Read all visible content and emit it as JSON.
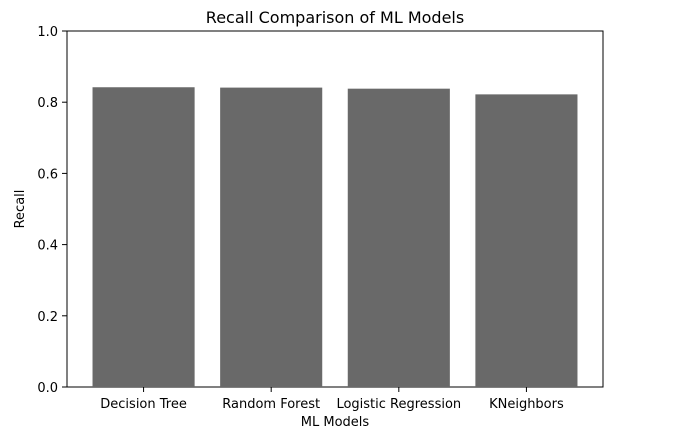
{
  "chart_data": {
    "type": "bar",
    "title": "Recall Comparison of ML Models",
    "xlabel": "ML Models",
    "ylabel": "Recall",
    "categories": [
      "Decision Tree",
      "Random Forest",
      "Logistic Regression",
      "KNeighbors"
    ],
    "values": [
      0.842,
      0.841,
      0.838,
      0.822
    ],
    "ylim": [
      0.0,
      1.0
    ],
    "yticks": [
      "0.0",
      "0.2",
      "0.4",
      "0.6",
      "0.8",
      "1.0"
    ],
    "grid": false,
    "bar_color": "#696969"
  }
}
